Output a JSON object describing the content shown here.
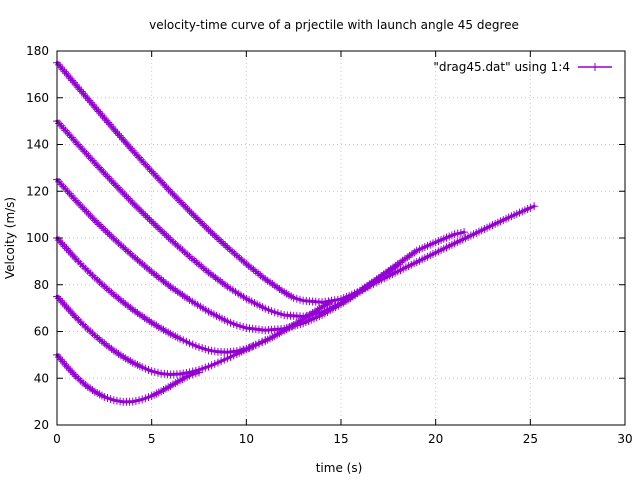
{
  "chart_data": {
    "type": "line",
    "title": "velocity-time curve of a prjectile with launch angle 45 degree",
    "xlabel": "time (s)",
    "ylabel": "Velcoity (m/s)",
    "xlim": [
      0,
      30
    ],
    "ylim": [
      20,
      180
    ],
    "x_ticks": [
      0,
      5,
      10,
      15,
      20,
      25,
      30
    ],
    "y_ticks": [
      20,
      40,
      60,
      80,
      100,
      120,
      140,
      160,
      180
    ],
    "grid": true,
    "legend_position": "top-right",
    "series_color": "#9400d3",
    "marker": "plus",
    "series": [
      {
        "name": "\"drag45.dat\" using 1:4",
        "segments": [
          {
            "x": [
              0,
              0.5,
              1,
              1.5,
              2,
              2.5,
              3,
              3.5,
              4,
              4.5,
              5,
              5.5,
              6,
              6.5,
              7,
              7.5
            ],
            "y": [
              50,
              45.2,
              40.8,
              37.1,
              34.2,
              32,
              30.6,
              29.9,
              30,
              30.9,
              32.4,
              34.4,
              36.7,
              39.1,
              41.2,
              42.5
            ]
          },
          {
            "x": [
              0,
              0.5,
              1,
              1.5,
              2,
              2.5,
              3,
              3.5,
              4,
              4.5,
              5,
              5.5,
              6,
              6.5,
              7,
              7.5,
              8,
              8.5,
              9,
              9.5,
              10,
              10.5,
              11
            ],
            "y": [
              75,
              70.5,
              66,
              62,
              58.3,
              54.9,
              51.8,
              49.1,
              46.7,
              44.7,
              43,
              42,
              41.6,
              41.8,
              42.5,
              43.6,
              45,
              46.7,
              48.5,
              50.4,
              52.4,
              54.4,
              56.3
            ]
          },
          {
            "x": [
              0,
              0.5,
              1,
              1.5,
              2,
              2.5,
              3,
              3.5,
              4,
              4.5,
              5,
              5.5,
              6,
              6.5,
              7,
              7.5,
              8,
              8.5,
              9,
              9.5,
              10,
              10.5,
              11,
              11.5,
              12,
              12.5,
              13,
              13.5,
              14,
              14.5
            ],
            "y": [
              100,
              95.5,
              91,
              86.9,
              83,
              79.3,
              75.8,
              72.5,
              69.4,
              66.5,
              63.8,
              61.3,
              59,
              56.9,
              55,
              53.3,
              52,
              51.3,
              51.1,
              51.6,
              52.6,
              54.1,
              56,
              58.1,
              60.4,
              62.8,
              65.3,
              67.9,
              70.5,
              73
            ]
          },
          {
            "x": [
              0,
              1,
              2,
              3,
              4,
              5,
              6,
              7,
              8,
              9,
              9.5,
              10,
              11,
              12,
              13,
              14,
              15,
              16,
              17,
              18
            ],
            "y": [
              125,
              116,
              107.5,
              99.7,
              92.4,
              85.5,
              79.1,
              73.5,
              68.5,
              64.3,
              62.7,
              61.5,
              60.5,
              61.2,
              63.5,
              67.1,
              71.7,
              77,
              82.7,
              88.5
            ]
          },
          {
            "x": [
              0,
              1,
              2,
              3,
              4,
              5,
              6,
              7,
              8,
              9,
              10,
              11,
              11.5,
              12,
              13,
              14,
              15,
              16,
              17,
              18,
              19,
              20,
              21,
              21.5
            ],
            "y": [
              150,
              141,
              132.1,
              123.4,
              115,
              107,
              99.3,
              92.1,
              85.3,
              79.2,
              74,
              69.8,
              68.2,
              67,
              66.4,
              68.2,
              72.2,
              77.4,
              83,
              88.8,
              94.6,
              98.2,
              101.6,
              102.5
            ]
          },
          {
            "x": [
              0,
              1,
              2,
              3,
              4,
              5,
              6,
              7,
              8,
              9,
              10,
              11,
              12,
              12.5,
              13,
              14,
              15,
              16,
              17,
              18,
              19,
              20,
              21,
              22,
              23,
              24,
              25,
              25.2
            ],
            "y": [
              175,
              165.5,
              156,
              146.6,
              137.4,
              128.5,
              119.8,
              111.5,
              103.5,
              96,
              88.9,
              82.4,
              76.8,
              74.4,
              73.2,
              72.5,
              73.8,
              77.3,
              81.6,
              85.7,
              89.7,
              93.7,
              97.7,
              101.6,
              105.5,
              109.3,
              112.9,
              113.6
            ]
          }
        ]
      }
    ]
  }
}
